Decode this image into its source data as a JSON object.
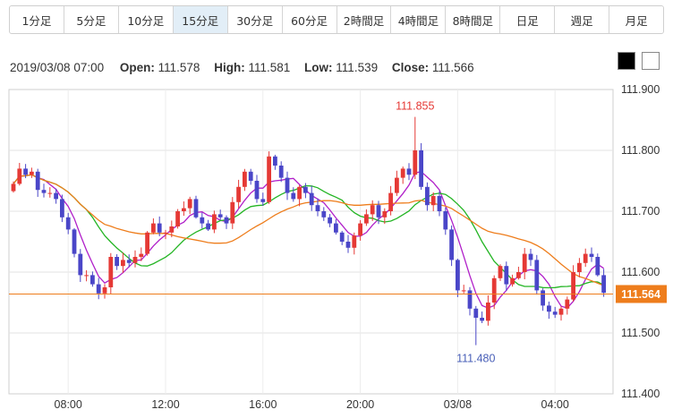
{
  "tabs": [
    {
      "label": "1分足",
      "active": false
    },
    {
      "label": "5分足",
      "active": false
    },
    {
      "label": "10分足",
      "active": false
    },
    {
      "label": "15分足",
      "active": true
    },
    {
      "label": "30分足",
      "active": false
    },
    {
      "label": "60分足",
      "active": false
    },
    {
      "label": "2時間足",
      "active": false
    },
    {
      "label": "4時間足",
      "active": false
    },
    {
      "label": "8時間足",
      "active": false
    },
    {
      "label": "日足",
      "active": false
    },
    {
      "label": "週足",
      "active": false
    },
    {
      "label": "月足",
      "active": false
    }
  ],
  "ohlc": {
    "datetime": "2019/03/08 07:00",
    "open_label": "Open:",
    "open": "111.578",
    "high_label": "High:",
    "high": "111.581",
    "low_label": "Low:",
    "low": "111.539",
    "close_label": "Close:",
    "close": "111.566"
  },
  "theme": {
    "dark_color": "#000000",
    "light_color": "#ffffff"
  },
  "chart_data": {
    "type": "candlestick",
    "ylim": [
      111.4,
      111.9
    ],
    "y_ticks": [
      "111.900",
      "111.800",
      "111.700",
      "111.600",
      "111.500",
      "111.400"
    ],
    "x_ticks": [
      "08:00",
      "12:00",
      "16:00",
      "20:00",
      "03/08",
      "04:00"
    ],
    "x_tick_index": [
      9,
      25,
      41,
      57,
      73,
      89
    ],
    "current_price": "111.564",
    "max_label": "111.855",
    "min_label": "111.480",
    "max_index": 66,
    "min_index": 76,
    "up_color": "#e53935",
    "down_color": "#4a46c8",
    "current_color": "#ee7d1c",
    "ma_colors": [
      "#b01fc9",
      "#24b524",
      "#ee7d1c"
    ],
    "closes": [
      111.745,
      111.77,
      111.76,
      111.765,
      111.735,
      111.73,
      111.73,
      111.72,
      111.69,
      111.67,
      111.63,
      111.595,
      111.595,
      111.58,
      111.565,
      111.575,
      111.625,
      111.61,
      111.62,
      111.615,
      111.625,
      111.63,
      111.665,
      111.68,
      111.665,
      111.665,
      111.675,
      111.7,
      111.705,
      111.72,
      111.69,
      111.68,
      111.67,
      111.695,
      111.69,
      111.68,
      111.715,
      111.74,
      111.765,
      111.75,
      111.72,
      111.715,
      111.79,
      111.775,
      111.755,
      111.73,
      111.72,
      111.74,
      111.73,
      111.71,
      111.7,
      111.69,
      111.68,
      111.665,
      111.65,
      111.64,
      111.66,
      111.68,
      111.695,
      111.71,
      111.69,
      111.7,
      111.73,
      111.755,
      111.77,
      111.76,
      111.8,
      111.74,
      111.71,
      111.725,
      111.7,
      111.67,
      111.62,
      111.57,
      111.57,
      111.54,
      111.525,
      111.52,
      111.55,
      111.59,
      111.61,
      111.58,
      111.59,
      111.6,
      111.63,
      111.62,
      111.57,
      111.545,
      111.535,
      111.53,
      111.54,
      111.555,
      111.6,
      111.615,
      111.63,
      111.625,
      111.595,
      111.566
    ]
  }
}
